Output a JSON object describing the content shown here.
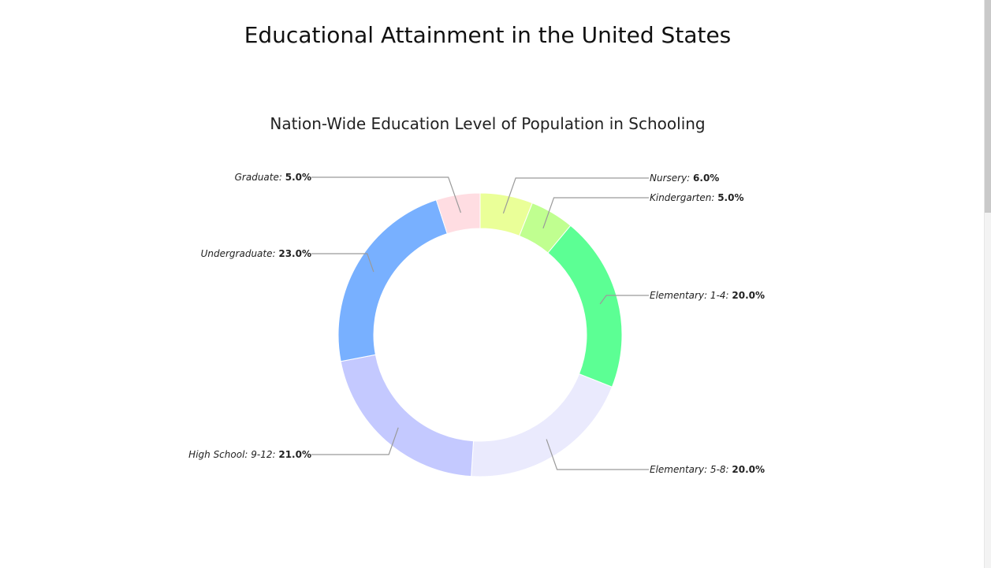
{
  "page": {
    "title": "Educational Attainment in the United States"
  },
  "chart_data": {
    "type": "pie",
    "variant": "donut",
    "title": "Nation-Wide Education Level of Population in Schooling",
    "value_suffix": "%",
    "slices": [
      {
        "name": "Nursery",
        "value": 6.0,
        "display": "6.0%",
        "color": "#eaff98"
      },
      {
        "name": "Kindergarten",
        "value": 5.0,
        "display": "5.0%",
        "color": "#c0ff90"
      },
      {
        "name": "Elementary: 1-4",
        "value": 20.0,
        "display": "20.0%",
        "color": "#5cff94"
      },
      {
        "name": "Elementary: 5-8",
        "value": 20.0,
        "display": "20.0%",
        "color": "#eaeafd"
      },
      {
        "name": "High School: 9-12",
        "value": 21.0,
        "display": "21.0%",
        "color": "#c4c9ff"
      },
      {
        "name": "Undergraduate",
        "value": 23.0,
        "display": "23.0%",
        "color": "#78b0ff"
      },
      {
        "name": "Graduate",
        "value": 5.0,
        "display": "5.0%",
        "color": "#ffdde2"
      }
    ]
  }
}
